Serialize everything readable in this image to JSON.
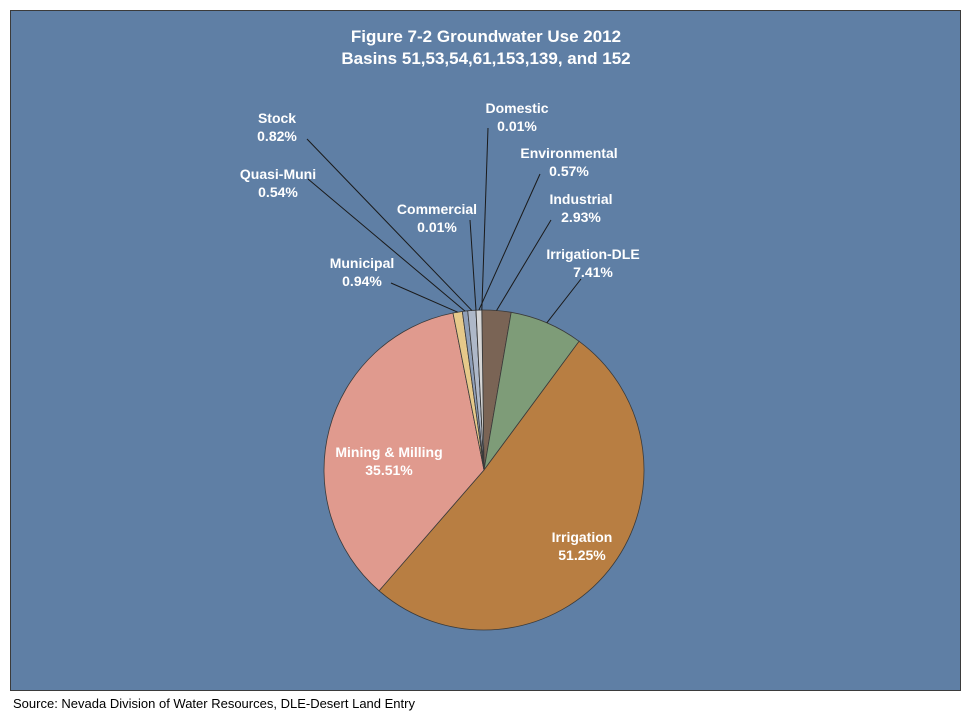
{
  "chart_data": {
    "type": "pie",
    "title": "Figure 7-2 Groundwater Use 2012",
    "subtitle": "Basins 51,53,54,61,153,139, and 152",
    "slices": [
      {
        "key": "domestic",
        "name": "Domestic",
        "value": 0.01,
        "label": "0.01%",
        "color": "#c9c9c9"
      },
      {
        "key": "industrial",
        "name": "Industrial",
        "value": 2.93,
        "label": "2.93%",
        "color": "#7a6455"
      },
      {
        "key": "irrigation_dle",
        "name": "Irrigation-DLE",
        "value": 7.41,
        "label": "7.41%",
        "color": "#7e9c78"
      },
      {
        "key": "irrigation",
        "name": "Irrigation",
        "value": 51.25,
        "label": "51.25%",
        "color": "#b87e42"
      },
      {
        "key": "mining",
        "name": "Mining & Milling",
        "value": 35.51,
        "label": "35.51%",
        "color": "#e09a8e"
      },
      {
        "key": "municipal",
        "name": "Municipal",
        "value": 0.94,
        "label": "0.94%",
        "color": "#e6c98a"
      },
      {
        "key": "quasi_muni",
        "name": "Quasi-Muni",
        "value": 0.54,
        "label": "0.54%",
        "color": "#8f9fb8"
      },
      {
        "key": "stock",
        "name": "Stock",
        "value": 0.82,
        "label": "0.82%",
        "color": "#aeb8c8"
      },
      {
        "key": "commercial",
        "name": "Commercial",
        "value": 0.01,
        "label": "0.01%",
        "color": "#b9c7d9"
      },
      {
        "key": "environmental",
        "name": "Environmental",
        "value": 0.57,
        "label": "0.57%",
        "color": "#d6d6d6"
      }
    ]
  },
  "source_note": "Source: Nevada Division of Water Resources, DLE-Desert Land Entry",
  "colors": {
    "background": "#5f7fa5",
    "text": "#ffffff",
    "leader_lines": "#1a1a1a"
  }
}
